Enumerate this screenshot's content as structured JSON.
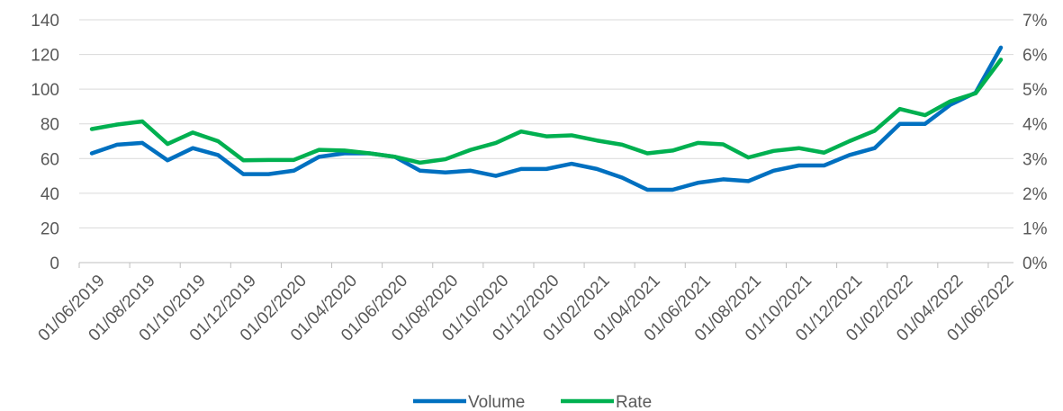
{
  "chart_data": {
    "type": "line",
    "title": "",
    "x": [
      "01/06/2019",
      "01/07/2019",
      "01/08/2019",
      "01/09/2019",
      "01/10/2019",
      "01/11/2019",
      "01/12/2019",
      "01/01/2020",
      "01/02/2020",
      "01/03/2020",
      "01/04/2020",
      "01/05/2020",
      "01/06/2020",
      "01/07/2020",
      "01/08/2020",
      "01/09/2020",
      "01/10/2020",
      "01/11/2020",
      "01/12/2020",
      "01/01/2021",
      "01/02/2021",
      "01/03/2021",
      "01/04/2021",
      "01/05/2021",
      "01/06/2021",
      "01/07/2021",
      "01/08/2021",
      "01/09/2021",
      "01/10/2021",
      "01/11/2021",
      "01/12/2021",
      "01/01/2022",
      "01/02/2022",
      "01/03/2022",
      "01/04/2022",
      "01/05/2022",
      "01/06/2022"
    ],
    "x_tick_labels": [
      "01/06/2019",
      "01/08/2019",
      "01/10/2019",
      "01/12/2019",
      "01/02/2020",
      "01/04/2020",
      "01/06/2020",
      "01/08/2020",
      "01/10/2020",
      "01/12/2020",
      "01/02/2021",
      "01/04/2021",
      "01/06/2021",
      "01/08/2021",
      "01/10/2021",
      "01/12/2021",
      "01/02/2022",
      "01/04/2022",
      "01/06/2022"
    ],
    "series": [
      {
        "name": "Volume",
        "axis": "left",
        "color": "#0070C0",
        "values": [
          63,
          68,
          69,
          59,
          66,
          62,
          51,
          51,
          53,
          61,
          63,
          63,
          61,
          53,
          52,
          53,
          50,
          54,
          54,
          57,
          54,
          49,
          42,
          42,
          46,
          48,
          47,
          53,
          56,
          56,
          62,
          66,
          80,
          80,
          91,
          98,
          124
        ]
      },
      {
        "name": "Rate",
        "axis": "right",
        "color": "#00B050",
        "values": [
          3.85,
          3.98,
          4.07,
          3.42,
          3.75,
          3.5,
          2.95,
          2.96,
          2.96,
          3.25,
          3.23,
          3.15,
          3.05,
          2.88,
          2.98,
          3.25,
          3.45,
          3.78,
          3.64,
          3.67,
          3.52,
          3.4,
          3.15,
          3.23,
          3.45,
          3.41,
          3.03,
          3.22,
          3.3,
          3.17,
          3.5,
          3.8,
          4.43,
          4.25,
          4.65,
          4.88,
          5.85
        ]
      }
    ],
    "y_left": {
      "min": 0,
      "max": 140,
      "step": 20,
      "tick_labels": [
        "0",
        "20",
        "40",
        "60",
        "80",
        "100",
        "120",
        "140"
      ]
    },
    "y_right": {
      "min": 0,
      "max": 7,
      "step": 1,
      "tick_labels": [
        "0%",
        "1%",
        "2%",
        "3%",
        "4%",
        "5%",
        "6%",
        "7%"
      ]
    },
    "grid": true,
    "legend_position": "bottom"
  }
}
